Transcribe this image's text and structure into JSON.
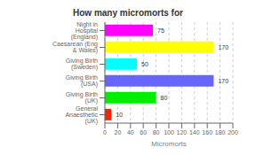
{
  "chart_data": {
    "type": "bar",
    "orientation": "horizontal",
    "title": "How many micromorts for",
    "categories": [
      "Night in Hospital (England)",
      "Caesarean (Eng & Wales)",
      "Giving Birth (Sweden)",
      "Giving Birth (USA)",
      "Giving Birth (UK)",
      "General Anaesthetic (UK)"
    ],
    "values": [
      75,
      170,
      50,
      170,
      80,
      10
    ],
    "colors": [
      "#ff00ff",
      "#ffff00",
      "#00ffff",
      "#6666ff",
      "#00ee00",
      "#ff2200"
    ],
    "xlabel": "Micromorts",
    "xlim": [
      0,
      200
    ],
    "xticks": [
      0,
      20,
      40,
      60,
      80,
      100,
      120,
      140,
      160,
      180,
      200
    ],
    "grid": true,
    "data_labels": true
  }
}
